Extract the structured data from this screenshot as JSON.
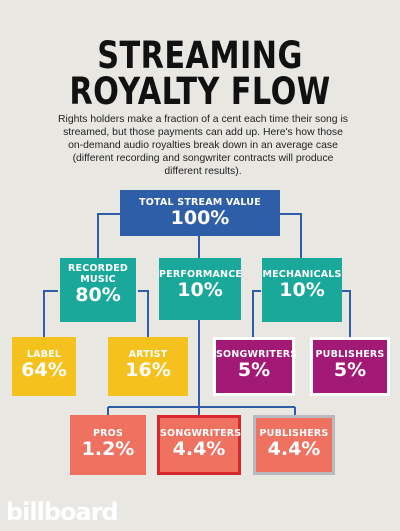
{
  "title_line1": "STREAMING",
  "title_line2": "ROYALTY FLOW",
  "subtitle": "Rights holders make a fraction of a cent each time their song is streamed, but those payments can add up. Here's how those on-demand audio royalties break down in an average case (different recording and songwriter contracts will produce different results).",
  "nodes": {
    "total": {
      "label": "TOTAL STREAM VALUE",
      "value": "100%"
    },
    "recorded": {
      "label": "RECORDED MUSIC",
      "value": "80%"
    },
    "performance": {
      "label": "PERFORMANCE",
      "value": "10%"
    },
    "mechanicals": {
      "label": "MECHANICALS",
      "value": "10%"
    },
    "label": {
      "label": "LABEL",
      "value": "64%"
    },
    "artist": {
      "label": "ARTIST",
      "value": "16%"
    },
    "mech_songwriters": {
      "label": "SONGWRITERS",
      "value": "5%"
    },
    "mech_publishers": {
      "label": "PUBLISHERS",
      "value": "5%"
    },
    "pros": {
      "label": "PROS",
      "value": "1.2%"
    },
    "perf_songwriters": {
      "label": "SONGWRITERS",
      "value": "4.4%"
    },
    "perf_publishers": {
      "label": "PUBLISHERS",
      "value": "4.4%"
    }
  },
  "logo": "billboard",
  "colors": {
    "total": "#2f5ea8",
    "level2": "#1aa89b",
    "recorded_split": "#f5c11c",
    "mechanicals_split": "#a21a76",
    "performance_split": "#ef7160"
  }
}
